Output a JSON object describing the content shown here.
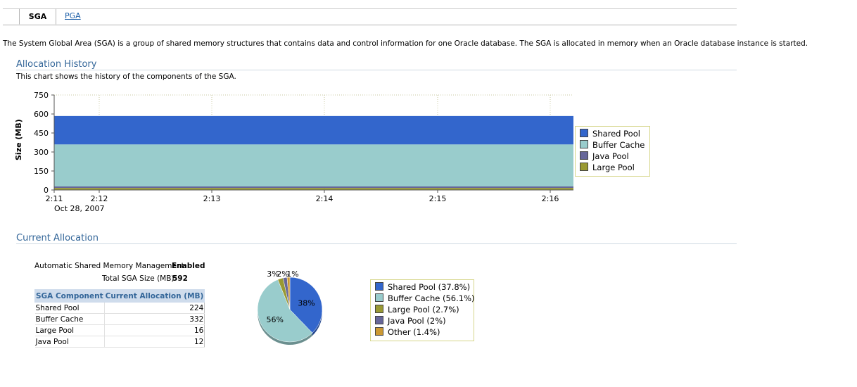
{
  "tabs": [
    {
      "label": "SGA",
      "active": true
    },
    {
      "label": "PGA",
      "active": false
    }
  ],
  "intro": "The System Global Area (SGA) is a group of shared memory structures that contains data and control information for one Oracle database. The SGA is allocated in memory when an Oracle database instance is started.",
  "allocation_history": {
    "title": "Allocation History",
    "subtitle": "This chart shows the history of the components of the SGA.",
    "date_label": "Oct 28, 2007"
  },
  "current_allocation": {
    "title": "Current Allocation",
    "asmm_label": "Automatic Shared Memory Management",
    "asmm_value": "Enabled",
    "total_label": "Total SGA Size (MB)",
    "total_value": "592",
    "table": {
      "headers": [
        "SGA Component",
        "Current Allocation (MB)"
      ],
      "rows": [
        [
          "Shared Pool",
          "224"
        ],
        [
          "Buffer Cache",
          "332"
        ],
        [
          "Large Pool",
          "16"
        ],
        [
          "Java Pool",
          "12"
        ]
      ]
    }
  },
  "colors": {
    "shared_pool": "#3366cc",
    "buffer_cache": "#99cccc",
    "java_pool": "#666699",
    "large_pool": "#999933",
    "other": "#cc9933",
    "title_blue": "#336699"
  },
  "chart_data": [
    {
      "type": "area",
      "stacked": true,
      "ylabel": "Size (MB)",
      "ylim": [
        0,
        750
      ],
      "y_ticks": [
        "750",
        "600",
        "450",
        "300",
        "150",
        "0"
      ],
      "x_ticks": [
        "2:11",
        "2:12",
        "2:13",
        "2:14",
        "2:15",
        "2:16"
      ],
      "x_sublabel": "Oct 28, 2007",
      "legend_position": "right",
      "legend": [
        "Shared Pool",
        "Buffer Cache",
        "Java Pool",
        "Large Pool"
      ],
      "series": [
        {
          "name": "Large Pool",
          "values": [
            16,
            16
          ],
          "color": "#999933"
        },
        {
          "name": "Java Pool",
          "values": [
            12,
            12
          ],
          "color": "#666699"
        },
        {
          "name": "Buffer Cache",
          "values": [
            332,
            332
          ],
          "color": "#99cccc"
        },
        {
          "name": "Shared Pool",
          "values": [
            224,
            224
          ],
          "color": "#3366cc"
        }
      ]
    },
    {
      "type": "pie",
      "slices": [
        {
          "name": "Shared Pool",
          "percent": 37.8,
          "label": "38%",
          "legend": "Shared Pool (37.8%)",
          "color": "#3366cc"
        },
        {
          "name": "Buffer Cache",
          "percent": 56.1,
          "label": "56%",
          "legend": "Buffer Cache (56.1%)",
          "color": "#99cccc"
        },
        {
          "name": "Large Pool",
          "percent": 2.7,
          "label": "3%",
          "legend": "Large Pool (2.7%)",
          "color": "#999933"
        },
        {
          "name": "Java Pool",
          "percent": 2,
          "label": "2%",
          "legend": "Java Pool (2%)",
          "color": "#666699"
        },
        {
          "name": "Other",
          "percent": 1.4,
          "label": "1%",
          "legend": "Other (1.4%)",
          "color": "#cc9933"
        }
      ],
      "legend_position": "right"
    }
  ]
}
